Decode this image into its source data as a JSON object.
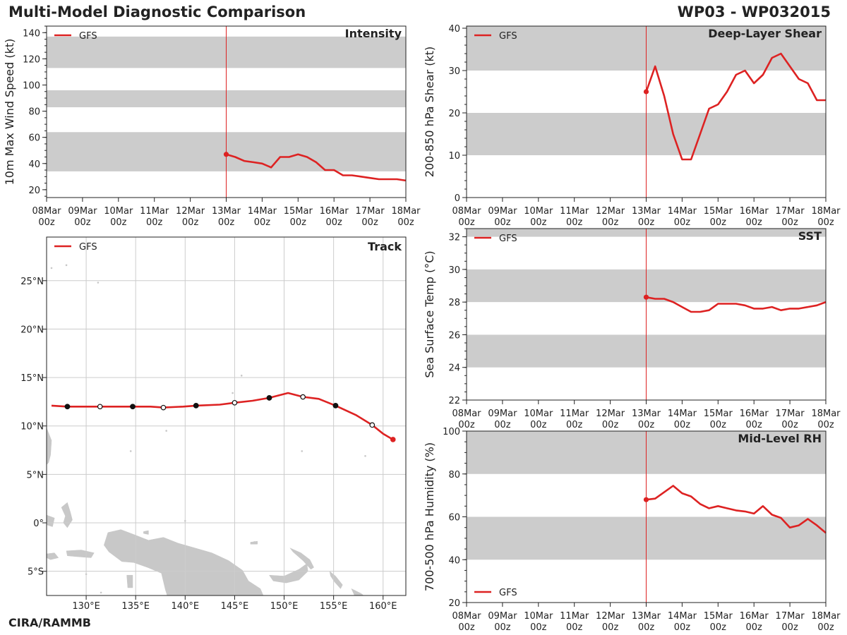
{
  "header": {
    "title": "Multi-Model Diagnostic Comparison",
    "storm_id": "WP03 - WP032015",
    "credit": "CIRA/RAMMB"
  },
  "colors": {
    "series": "#dd2222",
    "band": "#cccccc",
    "grid": "#cccccc",
    "land": "#c8c8c8",
    "axis": "#222222"
  },
  "time_ticks": [
    {
      "top": "08Mar",
      "bottom": "00z"
    },
    {
      "top": "09Mar",
      "bottom": "00z"
    },
    {
      "top": "10Mar",
      "bottom": "00z"
    },
    {
      "top": "11Mar",
      "bottom": "00z"
    },
    {
      "top": "12Mar",
      "bottom": "00z"
    },
    {
      "top": "13Mar",
      "bottom": "00z"
    },
    {
      "top": "14Mar",
      "bottom": "00z"
    },
    {
      "top": "15Mar",
      "bottom": "00z"
    },
    {
      "top": "16Mar",
      "bottom": "00z"
    },
    {
      "top": "17Mar",
      "bottom": "00z"
    },
    {
      "top": "18Mar",
      "bottom": "00z"
    }
  ],
  "chart_data": [
    {
      "id": "intensity",
      "type": "line",
      "title": "Intensity",
      "ylabel": "10m Max Wind Speed (kt)",
      "xlabel": "",
      "x_unit": "days since 08Mar 00z",
      "xlim": [
        0,
        10
      ],
      "ylim": [
        14,
        145
      ],
      "yticks": [
        20,
        40,
        60,
        80,
        100,
        120,
        140
      ],
      "yminor_step": 5,
      "bands": [
        [
          34,
          64
        ],
        [
          83,
          96
        ],
        [
          113,
          137
        ]
      ],
      "init_x": 5,
      "legend": "GFS",
      "legend_position": "top-left",
      "series": [
        {
          "name": "GFS",
          "x": [
            5,
            5.25,
            5.5,
            5.75,
            6,
            6.25,
            6.5,
            6.75,
            7,
            7.25,
            7.5,
            7.75,
            8,
            8.25,
            8.5,
            8.75,
            9,
            9.25,
            9.5,
            9.75,
            10
          ],
          "values": [
            47,
            45,
            42,
            41,
            40,
            37,
            45,
            45,
            47,
            45,
            41,
            35,
            35,
            31,
            31,
            30,
            29,
            28,
            28,
            28,
            27
          ]
        }
      ]
    },
    {
      "id": "shear",
      "type": "line",
      "title": "Deep-Layer Shear",
      "ylabel": "200-850 hPa Shear (kt)",
      "xlabel": "",
      "x_unit": "days since 08Mar 00z",
      "xlim": [
        0,
        10
      ],
      "ylim": [
        0,
        40.5
      ],
      "yticks": [
        0,
        10,
        20,
        30,
        40
      ],
      "yminor_step": 2,
      "bands": [
        [
          10,
          20
        ],
        [
          30,
          40.5
        ]
      ],
      "init_x": 5,
      "legend": "GFS",
      "legend_position": "top-left",
      "series": [
        {
          "name": "GFS",
          "x": [
            5,
            5.25,
            5.5,
            5.75,
            6,
            6.25,
            6.5,
            6.75,
            7,
            7.25,
            7.5,
            7.75,
            8,
            8.25,
            8.5,
            8.75,
            9,
            9.25,
            9.5,
            9.75,
            10
          ],
          "values": [
            25,
            31,
            24,
            15,
            9,
            9,
            15,
            21,
            22,
            25,
            29,
            30,
            27,
            29,
            33,
            34,
            31,
            28,
            27,
            23,
            23
          ]
        }
      ]
    },
    {
      "id": "sst",
      "type": "line",
      "title": "SST",
      "ylabel": "Sea Surface Temp (°C)",
      "xlabel": "",
      "x_unit": "days since 08Mar 00z",
      "xlim": [
        0,
        10
      ],
      "ylim": [
        22,
        32.5
      ],
      "yticks": [
        22,
        24,
        26,
        28,
        30,
        32
      ],
      "yminor_step": 0.5,
      "bands": [
        [
          24,
          26
        ],
        [
          28,
          30
        ],
        [
          32,
          32.5
        ]
      ],
      "init_x": 5,
      "legend": "GFS",
      "legend_position": "top-left",
      "series": [
        {
          "name": "GFS",
          "x": [
            5,
            5.25,
            5.5,
            5.75,
            6,
            6.25,
            6.5,
            6.75,
            7,
            7.25,
            7.5,
            7.75,
            8,
            8.25,
            8.5,
            8.75,
            9,
            9.25,
            9.5,
            9.75,
            10
          ],
          "values": [
            28.3,
            28.2,
            28.2,
            28.0,
            27.7,
            27.4,
            27.4,
            27.5,
            27.9,
            27.9,
            27.9,
            27.8,
            27.6,
            27.6,
            27.7,
            27.5,
            27.6,
            27.6,
            27.7,
            27.8,
            28.0
          ]
        }
      ]
    },
    {
      "id": "rh",
      "type": "line",
      "title": "Mid-Level RH",
      "ylabel": "700-500 hPa Humidity (%)",
      "xlabel": "",
      "x_unit": "days since 08Mar 00z",
      "xlim": [
        0,
        10
      ],
      "ylim": [
        20,
        100
      ],
      "yticks": [
        20,
        40,
        60,
        80,
        100
      ],
      "yminor_step": 5,
      "bands": [
        [
          40,
          60
        ],
        [
          80,
          100
        ]
      ],
      "init_x": 5,
      "legend": "GFS",
      "legend_position": "bottom-left",
      "series": [
        {
          "name": "GFS",
          "x": [
            5,
            5.25,
            5.5,
            5.75,
            6,
            6.25,
            6.5,
            6.75,
            7,
            7.25,
            7.5,
            7.75,
            8,
            8.25,
            8.5,
            8.75,
            9,
            9.25,
            9.5,
            9.75,
            10
          ],
          "values": [
            68,
            68.5,
            71.5,
            74.5,
            71,
            69.5,
            66,
            64,
            65,
            64,
            63,
            62.5,
            61.5,
            65,
            61,
            59.5,
            55,
            56,
            59,
            56,
            52.5
          ]
        }
      ]
    },
    {
      "id": "track",
      "type": "scatter",
      "title": "Track",
      "xlabel": "",
      "ylabel": "",
      "lon_range": [
        126,
        162.3
      ],
      "lat_range": [
        -7.5,
        29.5
      ],
      "lon_ticks": [
        130,
        135,
        140,
        145,
        150,
        155,
        160
      ],
      "lon_tick_labels": [
        "130°E",
        "135°E",
        "140°E",
        "145°E",
        "150°E",
        "155°E",
        "160°E"
      ],
      "lat_ticks": [
        -5,
        0,
        5,
        10,
        15,
        20,
        25
      ],
      "lat_tick_labels": [
        "5°S",
        "0°",
        "5°N",
        "10°N",
        "15°N",
        "20°N",
        "25°N"
      ],
      "legend": "GFS",
      "legend_position": "top-left",
      "series": [
        {
          "name": "GFS",
          "lon": [
            161.0,
            160.0,
            158.9,
            157.3,
            155.2,
            153.5,
            151.9,
            150.4,
            148.5,
            146.8,
            145.0,
            143.5,
            141.1,
            139.8,
            137.8,
            136.5,
            134.7,
            133.0,
            131.4,
            130.0,
            128.1,
            126.5
          ],
          "lat": [
            8.6,
            9.2,
            10.1,
            11.1,
            12.1,
            12.8,
            13.0,
            13.4,
            12.9,
            12.6,
            12.4,
            12.2,
            12.1,
            12.0,
            11.9,
            12.0,
            12.0,
            12.0,
            12.0,
            12.0,
            12.0,
            12.1
          ],
          "markers": [
            {
              "i": 0,
              "style": "start"
            },
            {
              "i": 2,
              "style": "open"
            },
            {
              "i": 4,
              "style": "filled"
            },
            {
              "i": 6,
              "style": "open"
            },
            {
              "i": 8,
              "style": "filled"
            },
            {
              "i": 10,
              "style": "open"
            },
            {
              "i": 12,
              "style": "filled"
            },
            {
              "i": 14,
              "style": "open"
            },
            {
              "i": 16,
              "style": "filled"
            },
            {
              "i": 18,
              "style": "open"
            },
            {
              "i": 20,
              "style": "filled"
            }
          ]
        }
      ]
    }
  ]
}
